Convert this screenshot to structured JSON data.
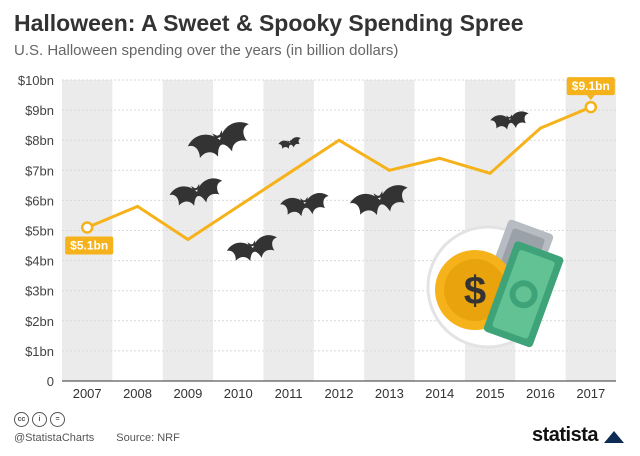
{
  "title": "Halloween: A Sweet & Spooky Spending Spree",
  "subtitle": "U.S. Halloween spending over the years (in billion dollars)",
  "footer": {
    "license_icons": [
      "cc-icon",
      "person-icon",
      "equals-icon"
    ],
    "handle": "@StatistaCharts",
    "source": "Source: NRF"
  },
  "brand": {
    "name": "statista"
  },
  "colors": {
    "line": "#f5b21b",
    "band": "#ebebeb",
    "bat": "#333333",
    "coin": "#f5b21b",
    "bill": "#3fa37a"
  },
  "chart_data": {
    "type": "line",
    "title": "Halloween: A Sweet & Spooky Spending Spree",
    "subtitle": "U.S. Halloween spending over the years (in billion dollars)",
    "xlabel": "",
    "ylabel": "",
    "categories": [
      "2007",
      "2008",
      "2009",
      "2010",
      "2011",
      "2012",
      "2013",
      "2014",
      "2015",
      "2016",
      "2017"
    ],
    "series": [
      {
        "name": "Halloween spending",
        "values": [
          5.1,
          5.8,
          4.7,
          5.8,
          6.9,
          8.0,
          7.0,
          7.4,
          6.9,
          8.4,
          9.1
        ]
      }
    ],
    "ylim": [
      0,
      10
    ],
    "yticks": [
      0,
      1,
      2,
      3,
      4,
      5,
      6,
      7,
      8,
      9,
      10
    ],
    "ytick_labels": [
      "0",
      "$1bn",
      "$2bn",
      "$3bn",
      "$4bn",
      "$5bn",
      "$6bn",
      "$7bn",
      "$8bn",
      "$9bn",
      "$10bn"
    ],
    "annotations": [
      {
        "category": "2007",
        "value": 5.1,
        "label": "$5.1bn"
      },
      {
        "category": "2017",
        "value": 9.1,
        "label": "$9.1bn"
      }
    ],
    "decorations": [
      "bat-icon",
      "coin-icon",
      "banknote-icon"
    ]
  }
}
